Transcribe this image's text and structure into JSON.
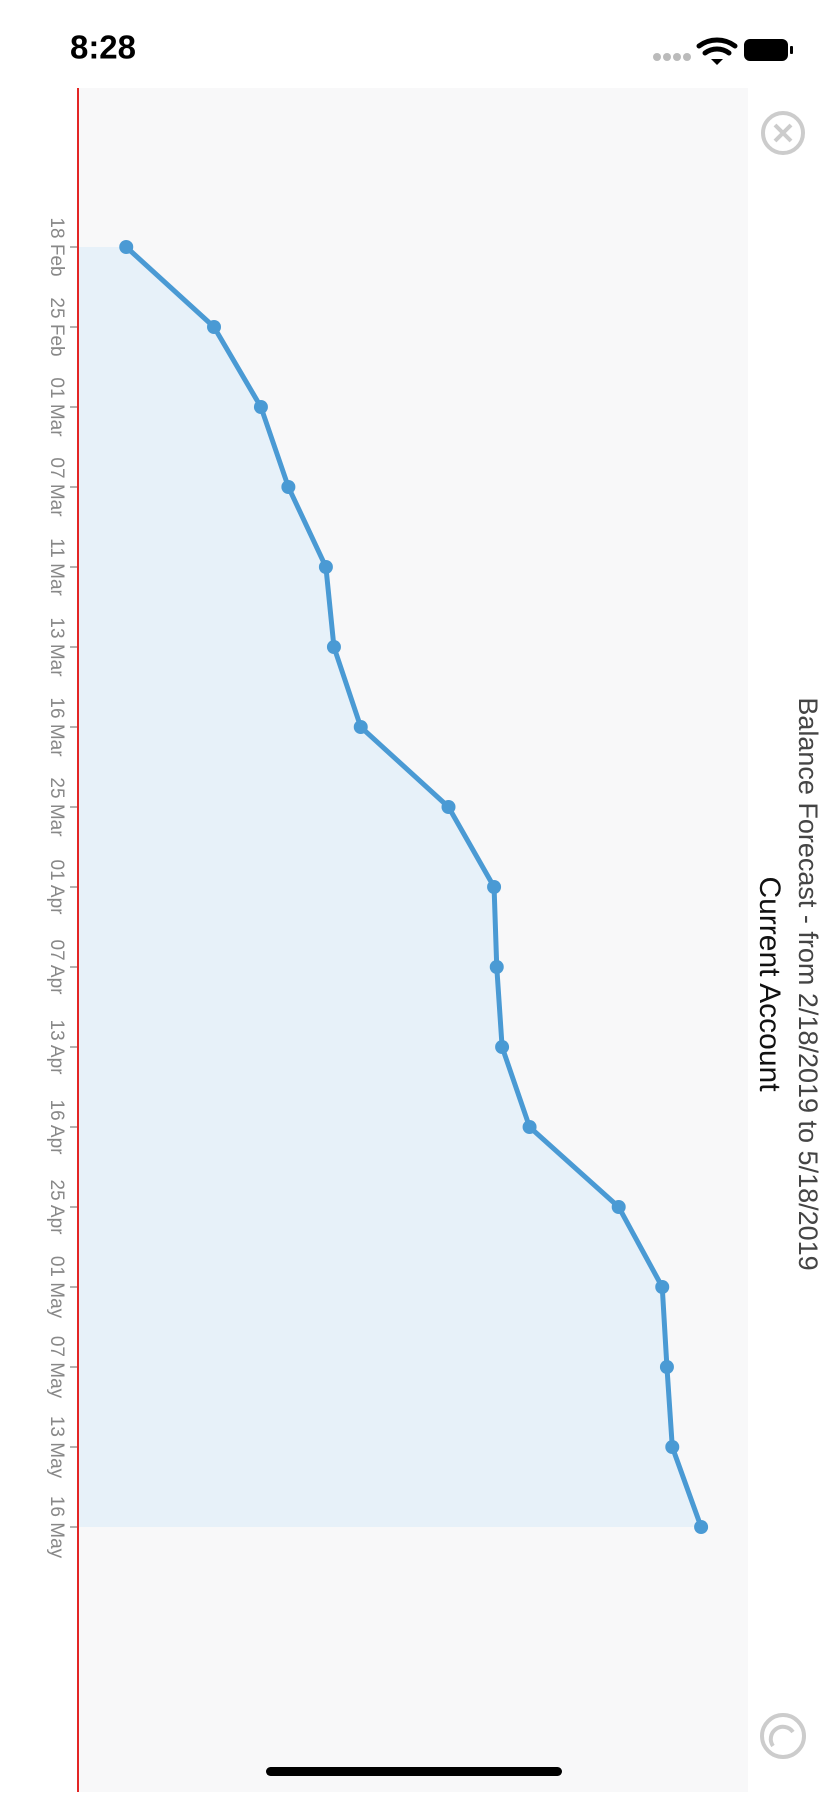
{
  "status_bar": {
    "time": "8:28"
  },
  "chart_data": {
    "type": "line",
    "title": "Balance Forecast - from 2/18/2019 to 5/18/2019",
    "subtitle": "Current Account",
    "categories": [
      "18 Feb",
      "25 Feb",
      "01 Mar",
      "07 Mar",
      "11 Mar",
      "13 Mar",
      "16 Mar",
      "25 Mar",
      "01 Apr",
      "07 Apr",
      "13 Apr",
      "16 Apr",
      "25 Apr",
      "01 May",
      "07 May",
      "13 May",
      "16 May"
    ],
    "values": [
      7.2,
      20.3,
      27.3,
      31.4,
      37.0,
      38.2,
      42.2,
      55.3,
      62.1,
      62.5,
      63.3,
      67.4,
      80.7,
      87.2,
      87.9,
      88.7,
      93.0
    ],
    "color": "#4a9ad4",
    "area": true,
    "area_color": "#e7f1f9",
    "ylim": [
      0,
      100
    ]
  }
}
